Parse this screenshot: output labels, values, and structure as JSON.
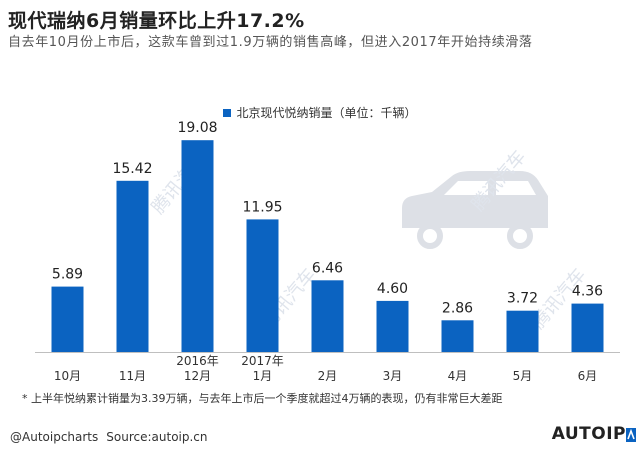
{
  "header": {
    "title": "现代瑞纳6月销量环比上升17.2%",
    "subtitle": "自去年10月份上市后，这款车曾到过1.9万辆的销售高峰，但进入2017年开始持续滑落"
  },
  "legend": {
    "label": "北京现代悦纳销量（单位：千辆）"
  },
  "chart_data": {
    "type": "bar",
    "categories": [
      "10月",
      "11月",
      "12月",
      "1月",
      "2月",
      "3月",
      "4月",
      "5月",
      "6月"
    ],
    "year_labels": [
      {
        "index": 2,
        "text": "2016年"
      },
      {
        "index": 3,
        "text": "2017年"
      }
    ],
    "series": [
      {
        "name": "北京现代悦纳销量（单位：千辆）",
        "values": [
          5.89,
          15.42,
          19.08,
          11.95,
          6.46,
          4.6,
          2.86,
          3.72,
          4.36
        ]
      }
    ],
    "value_labels": [
      "5.89",
      "15.42",
      "19.08",
      "11.95",
      "6.46",
      "4.60",
      "2.86",
      "3.72",
      "4.36"
    ],
    "ylim": [
      0,
      20
    ],
    "grid": false,
    "legend_position": "top-center",
    "bar_color": "#0b63c1"
  },
  "footnote": "* 上半年悦纳累计销量为3.39万辆，与去年上市后一个季度就超过4万辆的表现，仍有非常巨大差距",
  "footer": {
    "handle": "@Autoipcharts",
    "source": "Source:autoip.cn",
    "brand": "AUTOIP"
  },
  "watermark": {
    "text": "腾讯汽车",
    "icon": "car-silhouette-icon"
  }
}
